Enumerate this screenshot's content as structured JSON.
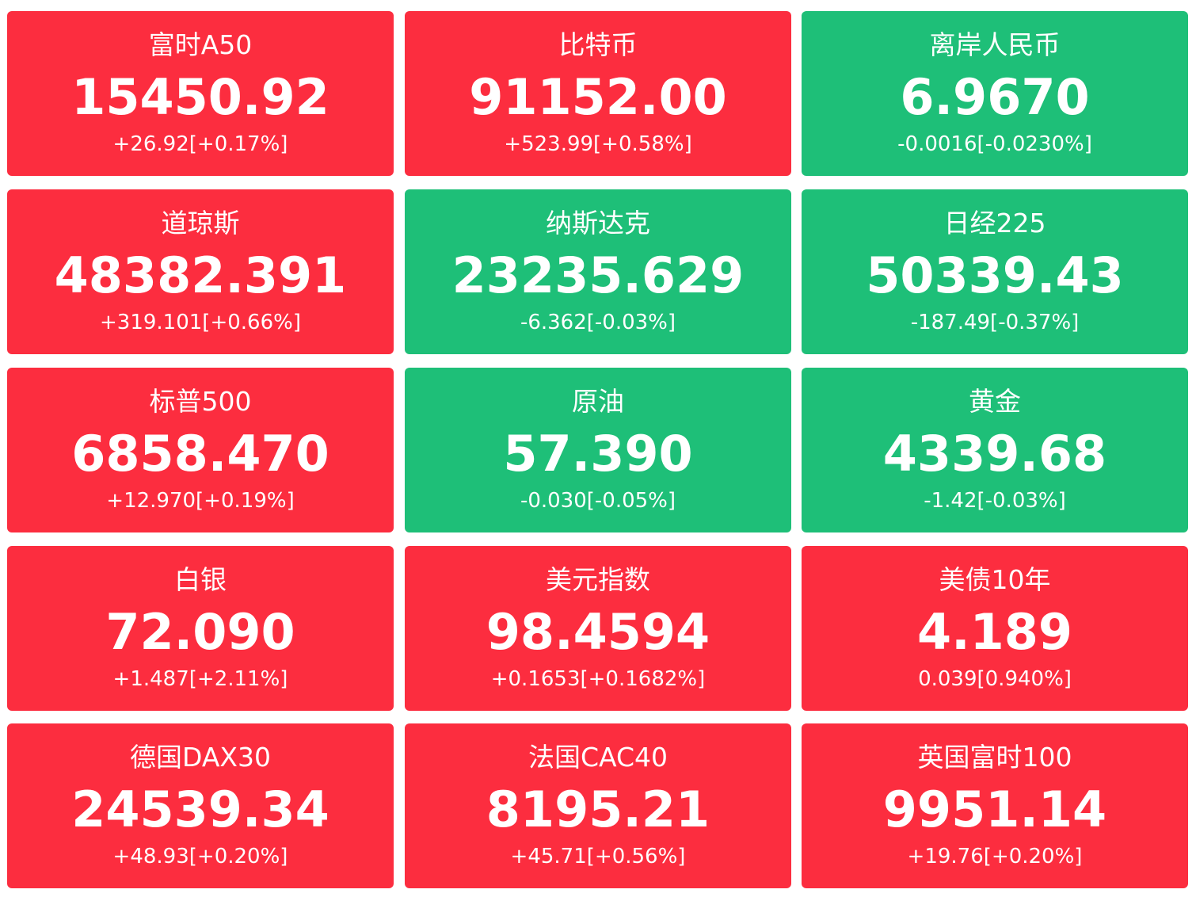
{
  "colors": {
    "up": "#fc2d3f",
    "down": "#1ebf78",
    "text": "#ffffff"
  },
  "quotes": [
    {
      "name": "富时A50",
      "price": "15450.92",
      "change": "+26.92[+0.17%]",
      "direction": "up"
    },
    {
      "name": "比特币",
      "price": "91152.00",
      "change": "+523.99[+0.58%]",
      "direction": "up"
    },
    {
      "name": "离岸人民币",
      "price": "6.9670",
      "change": "-0.0016[-0.0230%]",
      "direction": "down"
    },
    {
      "name": "道琼斯",
      "price": "48382.391",
      "change": "+319.101[+0.66%]",
      "direction": "up"
    },
    {
      "name": "纳斯达克",
      "price": "23235.629",
      "change": "-6.362[-0.03%]",
      "direction": "down"
    },
    {
      "name": "日经225",
      "price": "50339.43",
      "change": "-187.49[-0.37%]",
      "direction": "down"
    },
    {
      "name": "标普500",
      "price": "6858.470",
      "change": "+12.970[+0.19%]",
      "direction": "up"
    },
    {
      "name": "原油",
      "price": "57.390",
      "change": "-0.030[-0.05%]",
      "direction": "down"
    },
    {
      "name": "黄金",
      "price": "4339.68",
      "change": "-1.42[-0.03%]",
      "direction": "down"
    },
    {
      "name": "白银",
      "price": "72.090",
      "change": "+1.487[+2.11%]",
      "direction": "up"
    },
    {
      "name": "美元指数",
      "price": "98.4594",
      "change": "+0.1653[+0.1682%]",
      "direction": "up"
    },
    {
      "name": "美债10年",
      "price": "4.189",
      "change": "0.039[0.940%]",
      "direction": "up"
    },
    {
      "name": "德国DAX30",
      "price": "24539.34",
      "change": "+48.93[+0.20%]",
      "direction": "up"
    },
    {
      "name": "法国CAC40",
      "price": "8195.21",
      "change": "+45.71[+0.56%]",
      "direction": "up"
    },
    {
      "name": "英国富时100",
      "price": "9951.14",
      "change": "+19.76[+0.20%]",
      "direction": "up"
    }
  ]
}
